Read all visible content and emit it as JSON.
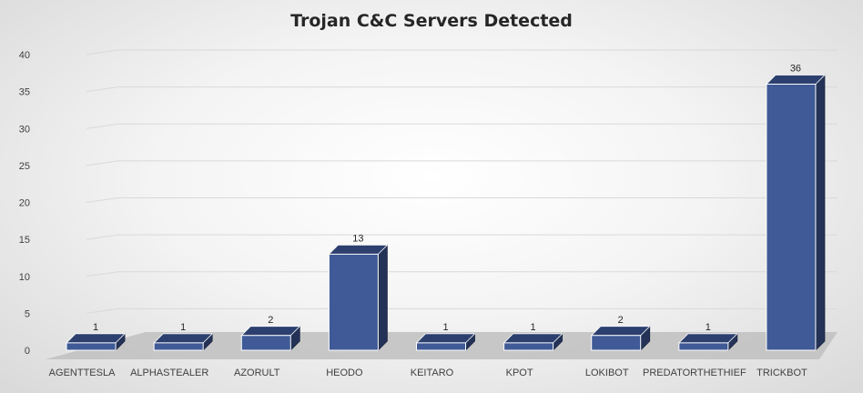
{
  "chart_data": {
    "type": "bar",
    "title": "Trojan C&C Servers Detected",
    "xlabel": "",
    "ylabel": "",
    "categories": [
      "AGENTTESLA",
      "ALPHASTEALER",
      "AZORULT",
      "HEODO",
      "KEITARO",
      "KPOT",
      "LOKIBOT",
      "PREDATORTHETHIEF",
      "TRICKBOT"
    ],
    "values": [
      1,
      1,
      2,
      13,
      1,
      1,
      2,
      1,
      36
    ],
    "ylim": [
      0,
      40
    ],
    "yticks": [
      0,
      5,
      10,
      15,
      20,
      25,
      30,
      35,
      40
    ],
    "grid": true,
    "colors": {
      "bar_front": "#3f5a96",
      "bar_top": "#2c3f6f",
      "bar_side": "#233256",
      "floor": "#bfbfbf",
      "gridline": "#d9d9d9"
    }
  }
}
